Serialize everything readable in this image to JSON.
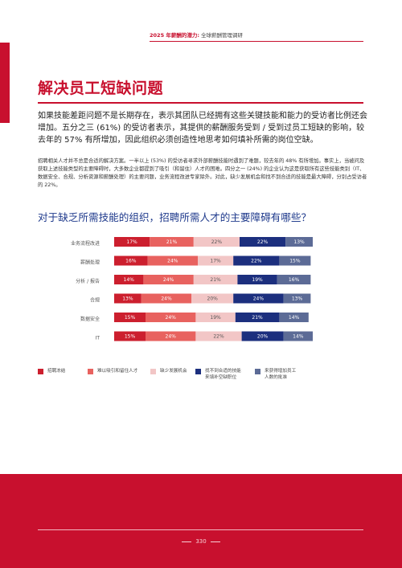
{
  "header": {
    "title_prefix": "2025 年薪酬的潜力:",
    "title_suffix": " 全球薪酬管理调研"
  },
  "section_title": "解决员工短缺问题",
  "intro": "如果技能差距问题不是长期存在，表示其团队已经拥有这些关键技能和能力的受访者比例还会增加。五分之三 (61%) 的受访者表示，其提供的薪酬服务受到 / 受到过员工短缺的影响，较去年的 57% 有所增加，因此组织必须创造性地思考如何填补所需的岗位空缺。",
  "body": "招聘相关人才并不总是合适的解决方案。一半以上 (53%) 的受访者寻求外部薪酬技能时遇到了难题，较去年的 48% 有所增加。事实上，当被问及获取上述技能类型的主要障碍时，大多数企业都提到了吸引（和留住）人才的困难。四分之一 (24%) 的企业认为这是获取所有这些技能类别（IT、数据安全、合规、分析资源和薪酬处理）的主要问题，业务流程改进专家除外。对此，缺少发展机会和找不到合适的技能是最大障碍，分别占受访者的 22%。",
  "question": "对于缺乏所需技能的组织，招聘所需人才的主要障碍有哪些？",
  "colors": {
    "accent": "#c8102e",
    "series": [
      "#cc1f2e",
      "#e8625f",
      "#f2c6c6",
      "#1c2f7e",
      "#5c6b96"
    ]
  },
  "chart_data": {
    "type": "bar",
    "stacked": true,
    "orientation": "horizontal",
    "categories": [
      "业务流程改进",
      "薪酬处理",
      "分析 / 报告",
      "合规",
      "数据安全",
      "IT"
    ],
    "series": [
      {
        "name": "招聘冻结",
        "values": [
          17,
          16,
          14,
          13,
          15,
          15
        ]
      },
      {
        "name": "难以吸引和留住人才",
        "values": [
          21,
          24,
          24,
          24,
          24,
          24
        ]
      },
      {
        "name": "缺少发展机会",
        "values": [
          22,
          17,
          21,
          20,
          19,
          22
        ]
      },
      {
        "name": "找不到合适的技能来填补空缺职位",
        "values": [
          22,
          22,
          19,
          24,
          21,
          20
        ]
      },
      {
        "name": "来获得增加员工人数的批准",
        "values": [
          13,
          15,
          16,
          13,
          14,
          14
        ]
      }
    ],
    "legend_position": "bottom",
    "value_suffix": "%"
  },
  "legend": [
    {
      "lines": [
        "招聘冻结"
      ]
    },
    {
      "lines": [
        "难以吸引和留住人才"
      ]
    },
    {
      "lines": [
        "缺少发展机会"
      ]
    },
    {
      "lines": [
        "找不到合适的技能",
        "来填补空缺职位"
      ]
    },
    {
      "lines": [
        "来获得增加员工",
        "人数的批准"
      ]
    }
  ],
  "page_number": "330"
}
